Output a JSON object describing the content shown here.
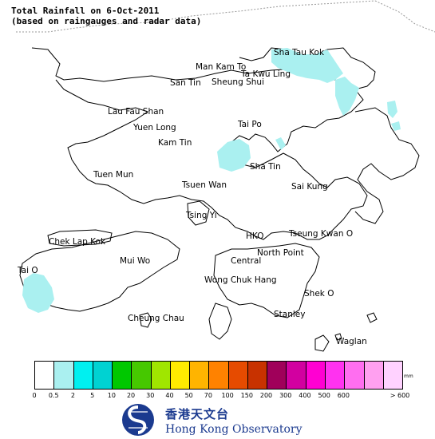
{
  "title": {
    "line1": "Total Rainfall on 6-Oct-2011",
    "line2": "(based on raingauges and radar data)"
  },
  "places": [
    {
      "id": "sha-tau-kok",
      "label": "Sha Tau Kok"
    },
    {
      "id": "man-kam-to",
      "label": "Man Kam To"
    },
    {
      "id": "ta-kwu-ling",
      "label": "Ta Kwu Ling"
    },
    {
      "id": "san-tin",
      "label": "San Tin"
    },
    {
      "id": "sheung-shui",
      "label": "Sheung Shui"
    },
    {
      "id": "lau-fau-shan",
      "label": "Lau Fau Shan"
    },
    {
      "id": "yuen-long",
      "label": "Yuen Long"
    },
    {
      "id": "tai-po",
      "label": "Tai Po"
    },
    {
      "id": "kam-tin",
      "label": "Kam Tin"
    },
    {
      "id": "sha-tin",
      "label": "Sha Tin"
    },
    {
      "id": "tuen-mun",
      "label": "Tuen Mun"
    },
    {
      "id": "tsuen-wan",
      "label": "Tsuen Wan"
    },
    {
      "id": "sai-kung",
      "label": "Sai Kung"
    },
    {
      "id": "tsing-yi",
      "label": "Tsing Yi"
    },
    {
      "id": "chek-lap-kok",
      "label": "Chek Lap Kok"
    },
    {
      "id": "hko",
      "label": "HKO"
    },
    {
      "id": "tseung-kwan-o",
      "label": "Tseung Kwan O"
    },
    {
      "id": "mui-wo",
      "label": "Mui Wo"
    },
    {
      "id": "north-point",
      "label": "North Point"
    },
    {
      "id": "central",
      "label": "Central"
    },
    {
      "id": "tai-o",
      "label": "Tai O"
    },
    {
      "id": "wong-chuk-hang",
      "label": "Wong Chuk Hang"
    },
    {
      "id": "shek-o",
      "label": "Shek O"
    },
    {
      "id": "stanley",
      "label": "Stanley"
    },
    {
      "id": "cheung-chau",
      "label": "Cheung Chau"
    },
    {
      "id": "waglan",
      "label": "Waglan"
    }
  ],
  "rain_area_color": "#aaf0f0",
  "legend": {
    "unit": "mm",
    "colors": [
      "#ffffff",
      "#aaf0f0",
      "#00f0f0",
      "#00d2d2",
      "#00c800",
      "#46c800",
      "#a0e600",
      "#ffeb00",
      "#ffb400",
      "#ff8200",
      "#e64b00",
      "#c83200",
      "#a0005a",
      "#d200a0",
      "#ff00d2",
      "#ff32f0",
      "#ff6ef0",
      "#ffa0f0",
      "#ffd2ff"
    ],
    "ticks": [
      "0",
      "0.5",
      "2",
      "5",
      "10",
      "20",
      "30",
      "40",
      "50",
      "70",
      "100",
      "150",
      "200",
      "300",
      "400",
      "500",
      "600",
      "> 600"
    ]
  },
  "logo": {
    "chinese": "香港天文台",
    "english": "Hong Kong Observatory",
    "color": "#1b3a8f"
  }
}
